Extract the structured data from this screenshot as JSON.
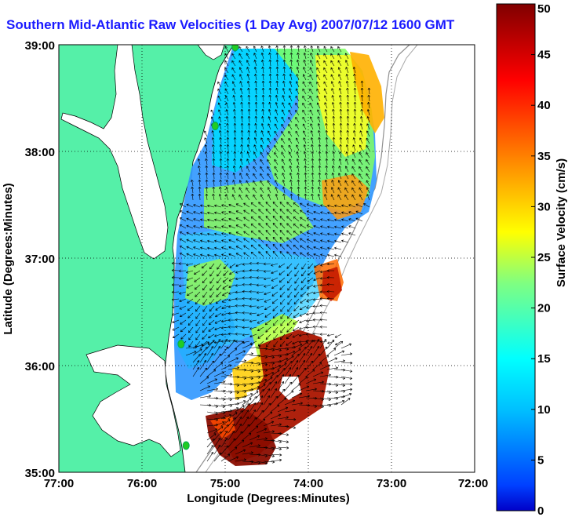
{
  "title": "Southern Mid-Atlantic Raw Velocities (1 Day Avg) 2007/07/12 1600 GMT",
  "map": {
    "xlabel": "Longitude (Degrees:Minutes)",
    "ylabel": "Latitude (Degrees:Minutes)",
    "x_ticks": [
      "77:00",
      "76:00",
      "75:00",
      "74:00",
      "73:00",
      "72:00"
    ],
    "y_ticks": [
      "39:00",
      "38:00",
      "37:00",
      "36:00",
      "35:00"
    ],
    "lon_range": [
      -77,
      -72
    ],
    "lat_range": [
      35,
      39
    ],
    "grid": true,
    "land_color": "#55f0a8",
    "water_color": "#ffffff",
    "station_color": "#22cc22",
    "stations": [
      {
        "lon": -74.88,
        "lat": 38.98
      },
      {
        "lon": -75.12,
        "lat": 38.24
      },
      {
        "lon": -75.53,
        "lat": 36.2
      },
      {
        "lon": -75.47,
        "lat": 35.25
      }
    ]
  },
  "colorbar": {
    "label": "Surface Velocity (cm/s)",
    "min": 0,
    "max": 50,
    "ticks": [
      "0",
      "5",
      "10",
      "15",
      "20",
      "25",
      "30",
      "35",
      "40",
      "45",
      "50"
    ]
  },
  "colors": {
    "title": "#1a1aff",
    "arrow": "#000000"
  }
}
